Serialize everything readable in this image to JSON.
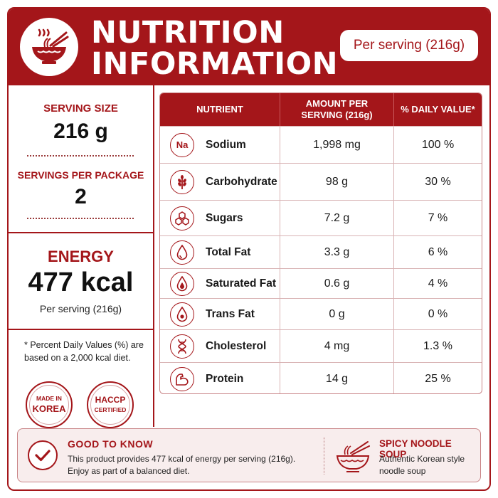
{
  "header": {
    "title_line1": "NUTRITION",
    "title_line2": "INFORMATION",
    "serving_badge": "Per serving (216g)",
    "logo_icon": "noodle-bowl-icon"
  },
  "left": {
    "serving_size_label": "SERVING SIZE",
    "serving_size_value": "216 g",
    "servings_per_package_label": "SERVINGS PER PACKAGE",
    "servings_per_package_value": "2",
    "energy_label": "ENERGY",
    "energy_value": "477 kcal",
    "energy_sub": "Per serving (216g)",
    "note": "* Percent Daily Values (%) are based on a 2,000 kcal diet.",
    "badge_korea_line1": "MADE IN",
    "badge_korea_line2": "KOREA",
    "badge_haccp_line1": "HACCP",
    "badge_haccp_line2": "CERTIFIED"
  },
  "table": {
    "headers": {
      "nutrient": "NUTRIENT",
      "amount": "AMOUNT PER SERVING (216g)",
      "dv": "% DAILY VALUE*"
    },
    "rows": [
      {
        "icon": "sodium-na-icon",
        "icon_text": "Na",
        "nutrient": "Sodium",
        "amount": "1,998 mg",
        "dv": "100 %"
      },
      {
        "icon": "wheat-icon",
        "nutrient": "Carbohydrate",
        "amount": "98 g",
        "dv": "30 %"
      },
      {
        "icon": "sugar-cubes-icon",
        "nutrient": "Sugars",
        "amount": "7.2 g",
        "dv": "7 %"
      },
      {
        "icon": "fat-drop-icon",
        "nutrient": "Total Fat",
        "amount": "3.3 g",
        "dv": "6 %"
      },
      {
        "icon": "saturated-fat-drop-icon",
        "nutrient": "Saturated Fat",
        "amount": "0.6 g",
        "dv": "4 %"
      },
      {
        "icon": "trans-fat-drop-icon",
        "nutrient": "Trans Fat",
        "amount": "0 g",
        "dv": "0 %"
      },
      {
        "icon": "dna-icon",
        "nutrient": "Cholesterol",
        "amount": "4 mg",
        "dv": "1.3 %"
      },
      {
        "icon": "flexed-arm-icon",
        "nutrient": "Protein",
        "amount": "14 g",
        "dv": "25 %"
      }
    ]
  },
  "footer": {
    "good_to_know_title": "GOOD TO KNOW",
    "good_to_know_text": "This product provides 477 kcal of energy per serving (216g). Enjoy as part of a balanced diet.",
    "product_title": "SPICY NOODLE SOUP",
    "product_text": "Authentic Korean style noodle soup"
  },
  "colors": {
    "accent": "#a4161a",
    "footer_bg": "#f8eded"
  }
}
